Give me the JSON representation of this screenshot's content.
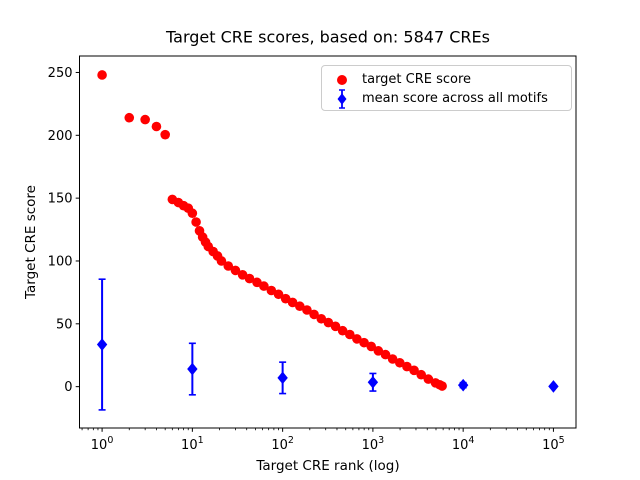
{
  "colors": {
    "target_series": "#ff0000",
    "mean_series": "#0000ff",
    "frame": "#000000",
    "legend_border": "#cccccc",
    "background": "#ffffff"
  },
  "chart_data": {
    "type": "scatter",
    "title": "Target CRE scores, based on: 5847 CREs",
    "xlabel": "Target CRE rank (log)",
    "ylabel": "Target CRE score",
    "x_scale": "log",
    "xlim": [
      0.562,
      177828
    ],
    "ylim": [
      -32.9,
      263.1
    ],
    "x_ticks": [
      {
        "value": 1,
        "base": "10",
        "exp": "0"
      },
      {
        "value": 10,
        "base": "10",
        "exp": "1"
      },
      {
        "value": 100,
        "base": "10",
        "exp": "2"
      },
      {
        "value": 1000,
        "base": "10",
        "exp": "3"
      },
      {
        "value": 10000,
        "base": "10",
        "exp": "4"
      },
      {
        "value": 100000,
        "base": "10",
        "exp": "5"
      }
    ],
    "y_ticks": [
      0,
      50,
      100,
      150,
      200,
      250
    ],
    "grid": false,
    "legend_position": "upper right",
    "series": [
      {
        "name": "target CRE score",
        "marker": "circle",
        "color": "#ff0000",
        "points": [
          [
            1,
            248
          ],
          [
            2,
            214
          ],
          [
            3,
            212.5
          ],
          [
            4,
            207
          ],
          [
            5,
            200.5
          ],
          [
            6,
            149
          ],
          [
            7,
            146.5
          ],
          [
            8,
            144
          ],
          [
            9,
            142
          ],
          [
            10,
            138
          ],
          [
            11,
            131
          ],
          [
            12,
            124
          ],
          [
            13,
            119
          ],
          [
            14,
            115
          ],
          [
            15,
            111.5
          ],
          [
            17,
            107.5
          ],
          [
            19,
            104
          ],
          [
            21,
            100
          ],
          [
            25,
            96
          ],
          [
            30,
            92.5
          ],
          [
            36,
            89
          ],
          [
            43,
            86
          ],
          [
            52,
            83
          ],
          [
            62,
            80
          ],
          [
            75,
            76.5
          ],
          [
            90,
            73.5
          ],
          [
            108,
            70
          ],
          [
            129,
            67
          ],
          [
            155,
            64
          ],
          [
            186,
            61
          ],
          [
            223,
            57.5
          ],
          [
            268,
            54
          ],
          [
            321,
            51
          ],
          [
            385,
            48
          ],
          [
            462,
            44.5
          ],
          [
            555,
            41.5
          ],
          [
            665,
            38
          ],
          [
            798,
            35
          ],
          [
            958,
            32
          ],
          [
            1149,
            28.5
          ],
          [
            1379,
            25.5
          ],
          [
            1654,
            22
          ],
          [
            1985,
            19
          ],
          [
            2382,
            16
          ],
          [
            2858,
            13
          ],
          [
            3429,
            9.5
          ],
          [
            4114,
            6
          ],
          [
            4936,
            3
          ],
          [
            5500,
            1.5
          ],
          [
            5847,
            0.5
          ]
        ]
      },
      {
        "name": "mean score across all motifs",
        "marker": "diamond",
        "color": "#0000ff",
        "points": [
          {
            "x": 1,
            "mean": 33.5,
            "err": 52
          },
          {
            "x": 10,
            "mean": 14,
            "err": 20.5
          },
          {
            "x": 100,
            "mean": 7,
            "err": 12.5
          },
          {
            "x": 1000,
            "mean": 3.5,
            "err": 7
          },
          {
            "x": 10000,
            "mean": 1.2,
            "err": 2
          },
          {
            "x": 100000,
            "mean": 0.2,
            "err": 1
          }
        ]
      }
    ]
  }
}
